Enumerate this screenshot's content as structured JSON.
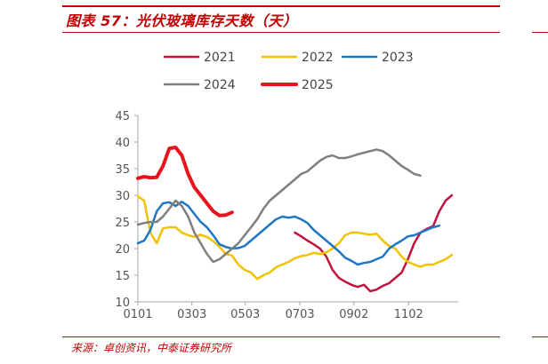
{
  "figure": {
    "title": "图表 57：光伏玻璃库存天数（天）",
    "source": "来源：卓创资讯，中泰证券研究所"
  },
  "chart_data": {
    "type": "line",
    "title": "",
    "xlabel": "",
    "ylabel": "",
    "ylim": [
      10,
      45
    ],
    "yticks": [
      10,
      15,
      20,
      25,
      30,
      35,
      40,
      45
    ],
    "xlim": [
      1,
      52
    ],
    "xticks": [
      {
        "label": "0101",
        "week": 1
      },
      {
        "label": "0303",
        "week": 9.6
      },
      {
        "label": "0503",
        "week": 18.1
      },
      {
        "label": "0703",
        "week": 26.8
      },
      {
        "label": "0902",
        "week": 35.4
      },
      {
        "label": "1102",
        "week": 44.1
      }
    ],
    "grid": false,
    "legend_position": "top",
    "series": [
      {
        "name": "2021",
        "color": "#c0143c",
        "width": 2.5,
        "points": [
          [
            26,
            23
          ],
          [
            27,
            22.3
          ],
          [
            28,
            21.5
          ],
          [
            29,
            20.8
          ],
          [
            30,
            20
          ],
          [
            31,
            18.5
          ],
          [
            32,
            16
          ],
          [
            33,
            14.5
          ],
          [
            34,
            13.8
          ],
          [
            35,
            13.2
          ],
          [
            36,
            12.8
          ],
          [
            37,
            13.2
          ],
          [
            38,
            12
          ],
          [
            39,
            12.3
          ],
          [
            40,
            13
          ],
          [
            41,
            13.5
          ],
          [
            42,
            14.5
          ],
          [
            43,
            15.5
          ],
          [
            44,
            18
          ],
          [
            45,
            21
          ],
          [
            46,
            23
          ],
          [
            47,
            23.7
          ],
          [
            48,
            24.2
          ],
          [
            49,
            27
          ],
          [
            50,
            29
          ],
          [
            51,
            30
          ]
        ]
      },
      {
        "name": "2022",
        "color": "#f2c200",
        "width": 2.5,
        "points": [
          [
            1,
            29.8
          ],
          [
            2,
            29
          ],
          [
            3,
            23
          ],
          [
            4,
            21
          ],
          [
            5,
            23.8
          ],
          [
            6,
            24
          ],
          [
            7,
            24
          ],
          [
            8,
            23
          ],
          [
            9,
            22.5
          ],
          [
            10,
            22.2
          ],
          [
            11,
            22.6
          ],
          [
            12,
            22.2
          ],
          [
            13,
            21.4
          ],
          [
            14,
            20.3
          ],
          [
            15,
            19
          ],
          [
            16,
            18.7
          ],
          [
            17,
            17
          ],
          [
            18,
            16
          ],
          [
            19,
            15.5
          ],
          [
            20,
            14.3
          ],
          [
            21,
            15
          ],
          [
            22,
            15.5
          ],
          [
            23,
            16.5
          ],
          [
            24,
            17
          ],
          [
            25,
            17.5
          ],
          [
            26,
            18.2
          ],
          [
            27,
            18.6
          ],
          [
            28,
            18.8
          ],
          [
            29,
            19.2
          ],
          [
            30,
            19
          ],
          [
            31,
            19.3
          ],
          [
            32,
            20
          ],
          [
            33,
            21
          ],
          [
            34,
            22.5
          ],
          [
            35,
            23
          ],
          [
            36,
            23
          ],
          [
            37,
            22.8
          ],
          [
            38,
            22.6
          ],
          [
            39,
            22.8
          ],
          [
            40,
            21.5
          ],
          [
            41,
            20.5
          ],
          [
            42,
            20
          ],
          [
            43,
            18.5
          ],
          [
            44,
            17.5
          ],
          [
            45,
            17
          ],
          [
            46,
            16.6
          ],
          [
            47,
            17
          ],
          [
            48,
            17
          ],
          [
            49,
            17.5
          ],
          [
            50,
            18
          ],
          [
            51,
            18.8
          ]
        ]
      },
      {
        "name": "2023",
        "color": "#1f77c4",
        "width": 2.5,
        "points": [
          [
            1,
            21
          ],
          [
            2,
            21.5
          ],
          [
            3,
            23.5
          ],
          [
            4,
            27
          ],
          [
            5,
            28.5
          ],
          [
            6,
            28.7
          ],
          [
            7,
            28
          ],
          [
            8,
            28.8
          ],
          [
            9,
            28
          ],
          [
            10,
            26.5
          ],
          [
            11,
            25
          ],
          [
            12,
            24
          ],
          [
            13,
            22.5
          ],
          [
            14,
            20.8
          ],
          [
            15,
            20.3
          ],
          [
            16,
            20
          ],
          [
            17,
            20.1
          ],
          [
            18,
            20.5
          ],
          [
            19,
            21.5
          ],
          [
            20,
            22.5
          ],
          [
            21,
            23.5
          ],
          [
            22,
            24.5
          ],
          [
            23,
            25.5
          ],
          [
            24,
            26
          ],
          [
            25,
            25.8
          ],
          [
            26,
            26
          ],
          [
            27,
            25.5
          ],
          [
            28,
            24.8
          ],
          [
            29,
            23.5
          ],
          [
            30,
            22.5
          ],
          [
            31,
            21.5
          ],
          [
            32,
            20.5
          ],
          [
            33,
            19.5
          ],
          [
            34,
            18.3
          ],
          [
            35,
            17.7
          ],
          [
            36,
            17
          ],
          [
            37,
            17.3
          ],
          [
            38,
            17.5
          ],
          [
            39,
            18
          ],
          [
            40,
            18.5
          ],
          [
            41,
            20
          ],
          [
            42,
            20.8
          ],
          [
            43,
            21.5
          ],
          [
            44,
            22.3
          ],
          [
            45,
            22.5
          ],
          [
            46,
            23
          ],
          [
            47,
            23.5
          ],
          [
            48,
            24
          ],
          [
            49,
            24.3
          ]
        ]
      },
      {
        "name": "2024",
        "color": "#7f7f7f",
        "width": 2.5,
        "points": [
          [
            1,
            24.5
          ],
          [
            2,
            24.8
          ],
          [
            3,
            25
          ],
          [
            4,
            25
          ],
          [
            5,
            26
          ],
          [
            6,
            27.5
          ],
          [
            7,
            29
          ],
          [
            8,
            28
          ],
          [
            9,
            26
          ],
          [
            10,
            23
          ],
          [
            11,
            21
          ],
          [
            12,
            19
          ],
          [
            13,
            17.5
          ],
          [
            14,
            18
          ],
          [
            15,
            19
          ],
          [
            16,
            20
          ],
          [
            17,
            21
          ],
          [
            18,
            22.5
          ],
          [
            19,
            24
          ],
          [
            20,
            25.5
          ],
          [
            21,
            27.5
          ],
          [
            22,
            29
          ],
          [
            23,
            30
          ],
          [
            24,
            31
          ],
          [
            25,
            32
          ],
          [
            26,
            33
          ],
          [
            27,
            34
          ],
          [
            28,
            34.5
          ],
          [
            29,
            35.5
          ],
          [
            30,
            36.5
          ],
          [
            31,
            37.2
          ],
          [
            32,
            37.5
          ],
          [
            33,
            37
          ],
          [
            34,
            37
          ],
          [
            35,
            37.3
          ],
          [
            36,
            37.7
          ],
          [
            37,
            38
          ],
          [
            38,
            38.3
          ],
          [
            39,
            38.6
          ],
          [
            40,
            38.3
          ],
          [
            41,
            37.5
          ],
          [
            42,
            36.5
          ],
          [
            43,
            35.5
          ],
          [
            44,
            34.8
          ],
          [
            45,
            34
          ],
          [
            46,
            33.7
          ]
        ]
      },
      {
        "name": "2025",
        "color": "#e8141c",
        "width": 4,
        "points": [
          [
            1,
            33.2
          ],
          [
            2,
            33.5
          ],
          [
            3,
            33.3
          ],
          [
            4,
            33.4
          ],
          [
            5,
            35.5
          ],
          [
            6,
            38.8
          ],
          [
            7,
            39
          ],
          [
            8,
            37.5
          ],
          [
            9,
            34
          ],
          [
            10,
            31.5
          ],
          [
            11,
            30
          ],
          [
            12,
            28.5
          ],
          [
            13,
            27
          ],
          [
            14,
            26.2
          ],
          [
            15,
            26.3
          ],
          [
            16,
            26.8
          ]
        ]
      }
    ]
  }
}
